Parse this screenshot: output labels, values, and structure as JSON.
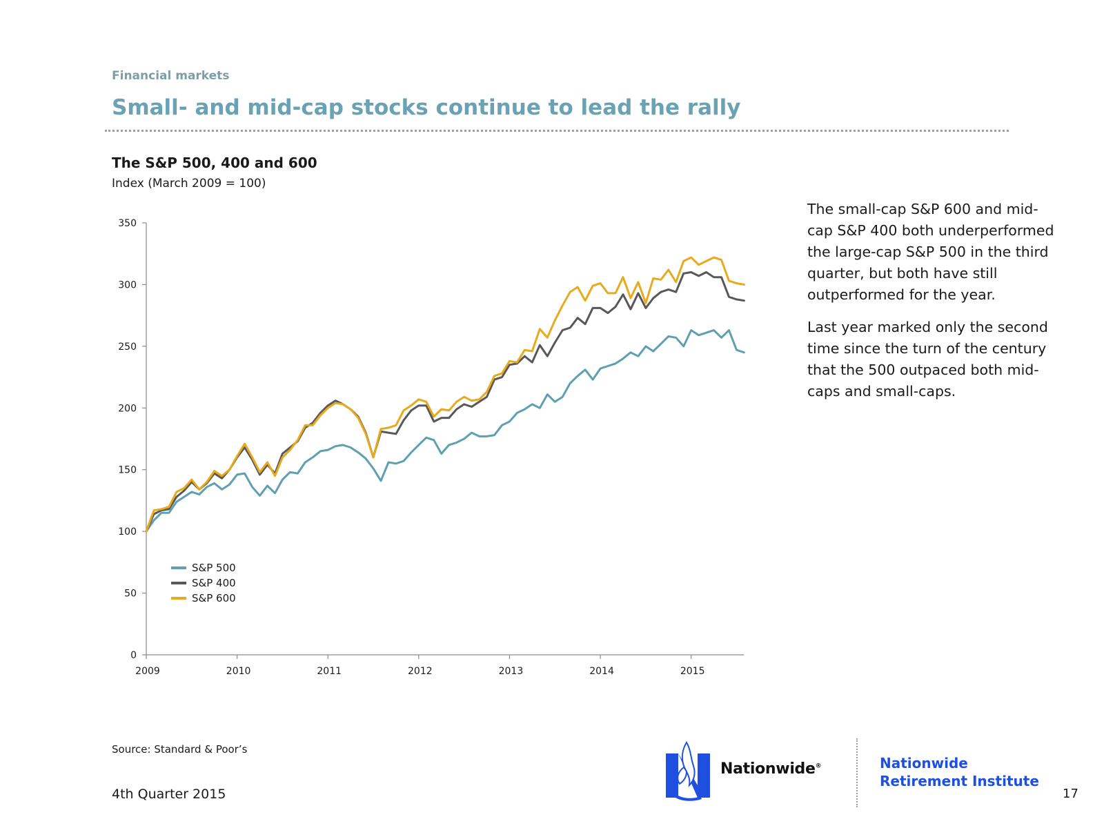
{
  "header": {
    "section": "Financial markets",
    "title": "Small- and mid-cap stocks continue to lead the rally"
  },
  "chart_data": {
    "type": "line",
    "title": "The S&P 500, 400 and 600",
    "subtitle": "Index (March 2009 = 100)",
    "xlabel": "",
    "ylabel": "",
    "x_tick_labels": [
      "2009",
      "2010",
      "2011",
      "2012",
      "2013",
      "2014",
      "2015"
    ],
    "y_tick_labels": [
      "0",
      "50",
      "100",
      "150",
      "200",
      "250",
      "300",
      "350"
    ],
    "ylim": [
      0,
      350
    ],
    "xlim": [
      2009.0,
      2015.58
    ],
    "grid": false,
    "legend_position": "lower-left",
    "x": [
      2009.0,
      2009.0833,
      2009.1667,
      2009.25,
      2009.3333,
      2009.4167,
      2009.5,
      2009.5833,
      2009.6667,
      2009.75,
      2009.8333,
      2009.9167,
      2010.0,
      2010.0833,
      2010.1667,
      2010.25,
      2010.3333,
      2010.4167,
      2010.5,
      2010.5833,
      2010.6667,
      2010.75,
      2010.8333,
      2010.9167,
      2011.0,
      2011.0833,
      2011.1667,
      2011.25,
      2011.3333,
      2011.4167,
      2011.5,
      2011.5833,
      2011.6667,
      2011.75,
      2011.8333,
      2011.9167,
      2012.0,
      2012.0833,
      2012.1667,
      2012.25,
      2012.3333,
      2012.4167,
      2012.5,
      2012.5833,
      2012.6667,
      2012.75,
      2012.8333,
      2012.9167,
      2013.0,
      2013.0833,
      2013.1667,
      2013.25,
      2013.3333,
      2013.4167,
      2013.5,
      2013.5833,
      2013.6667,
      2013.75,
      2013.8333,
      2013.9167,
      2014.0,
      2014.0833,
      2014.1667,
      2014.25,
      2014.3333,
      2014.4167,
      2014.5,
      2014.5833,
      2014.6667,
      2014.75,
      2014.8333,
      2014.9167,
      2015.0,
      2015.0833,
      2015.1667,
      2015.25,
      2015.3333,
      2015.4167,
      2015.5,
      2015.5833
    ],
    "series": [
      {
        "name": "S&P 500",
        "color": "#5f9fb2",
        "values": [
          100,
          109,
          115,
          115,
          124,
          128,
          132,
          130,
          136,
          139,
          134,
          138,
          146,
          147,
          136,
          129,
          137,
          131,
          142,
          148,
          147,
          156,
          160,
          165,
          166,
          169,
          170,
          168,
          164,
          159,
          151,
          141,
          156,
          155,
          157,
          164,
          170,
          176,
          174,
          163,
          170,
          172,
          175,
          180,
          177,
          177,
          178,
          186,
          189,
          196,
          199,
          203,
          200,
          211,
          205,
          209,
          220,
          226,
          231,
          223,
          232,
          234,
          236,
          240,
          245,
          242,
          250,
          246,
          252,
          258,
          257,
          250,
          263,
          259,
          261,
          263,
          257,
          263,
          247,
          245
        ]
      },
      {
        "name": "S&P 400",
        "color": "#58585a",
        "values": [
          100,
          114,
          117,
          118,
          128,
          133,
          140,
          134,
          139,
          147,
          143,
          150,
          160,
          168,
          158,
          146,
          154,
          147,
          163,
          168,
          173,
          184,
          188,
          196,
          202,
          206,
          203,
          199,
          193,
          180,
          160,
          181,
          180,
          179,
          190,
          198,
          202,
          202,
          189,
          192,
          192,
          199,
          203,
          201,
          205,
          209,
          223,
          225,
          235,
          236,
          242,
          237,
          251,
          242,
          253,
          263,
          265,
          273,
          268,
          281,
          281,
          277,
          282,
          292,
          280,
          293,
          281,
          289,
          294,
          296,
          294,
          309,
          310,
          307,
          310,
          306,
          306,
          290,
          288,
          287
        ]
      },
      {
        "name": "S&P 600",
        "color": "#e8aa1d",
        "values": [
          100,
          117,
          118,
          120,
          132,
          135,
          142,
          134,
          140,
          149,
          145,
          150,
          161,
          171,
          160,
          148,
          156,
          145,
          160,
          166,
          174,
          186,
          186,
          194,
          200,
          204,
          203,
          199,
          192,
          179,
          160,
          183,
          184,
          186,
          198,
          202,
          207,
          205,
          193,
          199,
          198,
          205,
          209,
          206,
          207,
          213,
          226,
          228,
          238,
          237,
          247,
          246,
          264,
          257,
          271,
          283,
          294,
          298,
          287,
          299,
          301,
          293,
          293,
          306,
          289,
          302,
          285,
          305,
          304,
          312,
          302,
          319,
          322,
          316,
          319,
          322,
          320,
          303,
          301,
          300
        ]
      }
    ]
  },
  "commentary": {
    "paragraph1": "The small-cap S&P 600 and mid-cap S&P 400 both underperformed the large-cap S&P 500 in the third quarter, but both have still outperformed for the year.",
    "paragraph2": "Last year marked only the second time since the turn of the century that the 500 outpaced both mid-caps and small-caps."
  },
  "footer": {
    "source": "Source: Standard & Poor’s",
    "date": "4th Quarter 2015",
    "brand": "Nationwide",
    "brand_mark": "®",
    "institute_line1": "Nationwide",
    "institute_line2": "Retirement Institute",
    "page_number": "17"
  }
}
